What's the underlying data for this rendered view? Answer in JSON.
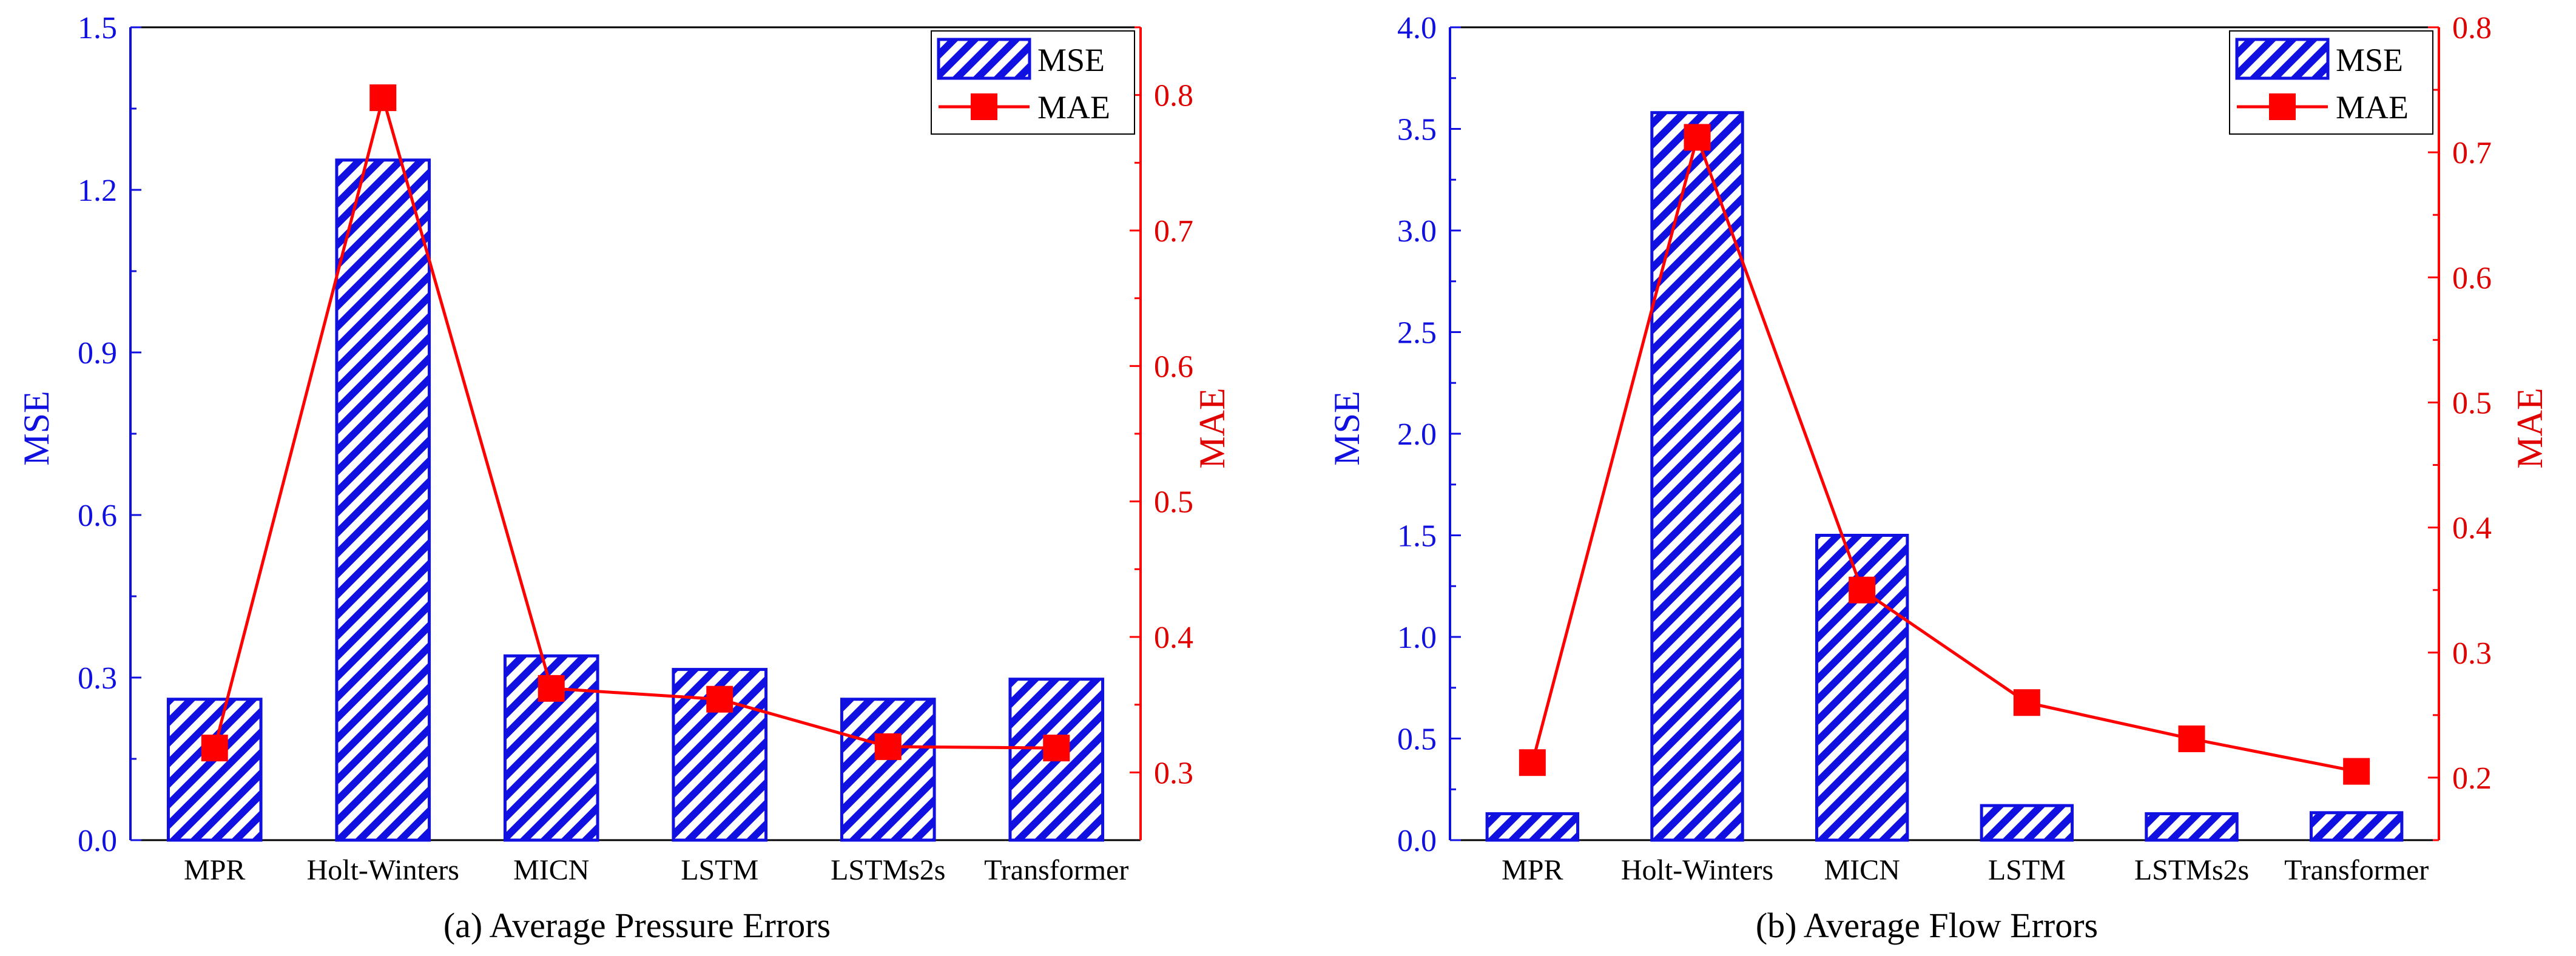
{
  "colors": {
    "bar": "#1010e0",
    "line": "#ff0000",
    "axis": "#000000"
  },
  "chart_data": [
    {
      "type": "bar",
      "title": "(a) Average Pressure Errors",
      "categories": [
        "MPR",
        "Holt-Winters",
        "MICN",
        "LSTM",
        "LSTMs2s",
        "Transformer"
      ],
      "series": [
        {
          "name": "MSE",
          "axis": "left",
          "kind": "bar",
          "values": [
            0.26,
            1.255,
            0.34,
            0.315,
            0.26,
            0.297
          ]
        },
        {
          "name": "MAE",
          "axis": "right",
          "kind": "line",
          "values": [
            0.318,
            0.798,
            0.362,
            0.354,
            0.319,
            0.318
          ]
        }
      ],
      "ylabel": "MSE",
      "y2label": "MAE",
      "ylim": [
        0,
        1.5
      ],
      "y2lim": [
        0.25,
        0.85
      ],
      "yticks": [
        "0.0",
        "0.3",
        "0.6",
        "0.9",
        "1.2",
        "1.5"
      ],
      "y2ticks": [
        "0.3",
        "0.4",
        "0.5",
        "0.6",
        "0.7",
        "0.8"
      ],
      "legend": {
        "position": "top-right",
        "entries": [
          "MSE",
          "MAE"
        ]
      }
    },
    {
      "type": "bar",
      "title": "(b) Average Flow Errors",
      "categories": [
        "MPR",
        "Holt-Winters",
        "MICN",
        "LSTM",
        "LSTMs2s",
        "Transformer"
      ],
      "series": [
        {
          "name": "MSE",
          "axis": "left",
          "kind": "bar",
          "values": [
            0.13,
            3.58,
            1.5,
            0.17,
            0.13,
            0.135
          ]
        },
        {
          "name": "MAE",
          "axis": "right",
          "kind": "line",
          "values": [
            0.212,
            0.712,
            0.35,
            0.26,
            0.231,
            0.205
          ]
        }
      ],
      "ylabel": "MSE",
      "y2label": "MAE",
      "ylim": [
        0,
        4.0
      ],
      "y2lim": [
        0.15,
        0.8
      ],
      "yticks": [
        "0.0",
        "0.5",
        "1.0",
        "1.5",
        "2.0",
        "2.5",
        "3.0",
        "3.5",
        "4.0"
      ],
      "y2ticks": [
        "0.2",
        "0.3",
        "0.4",
        "0.5",
        "0.6",
        "0.7",
        "0.8"
      ],
      "legend": {
        "position": "top-right",
        "entries": [
          "MSE",
          "MAE"
        ]
      }
    }
  ]
}
